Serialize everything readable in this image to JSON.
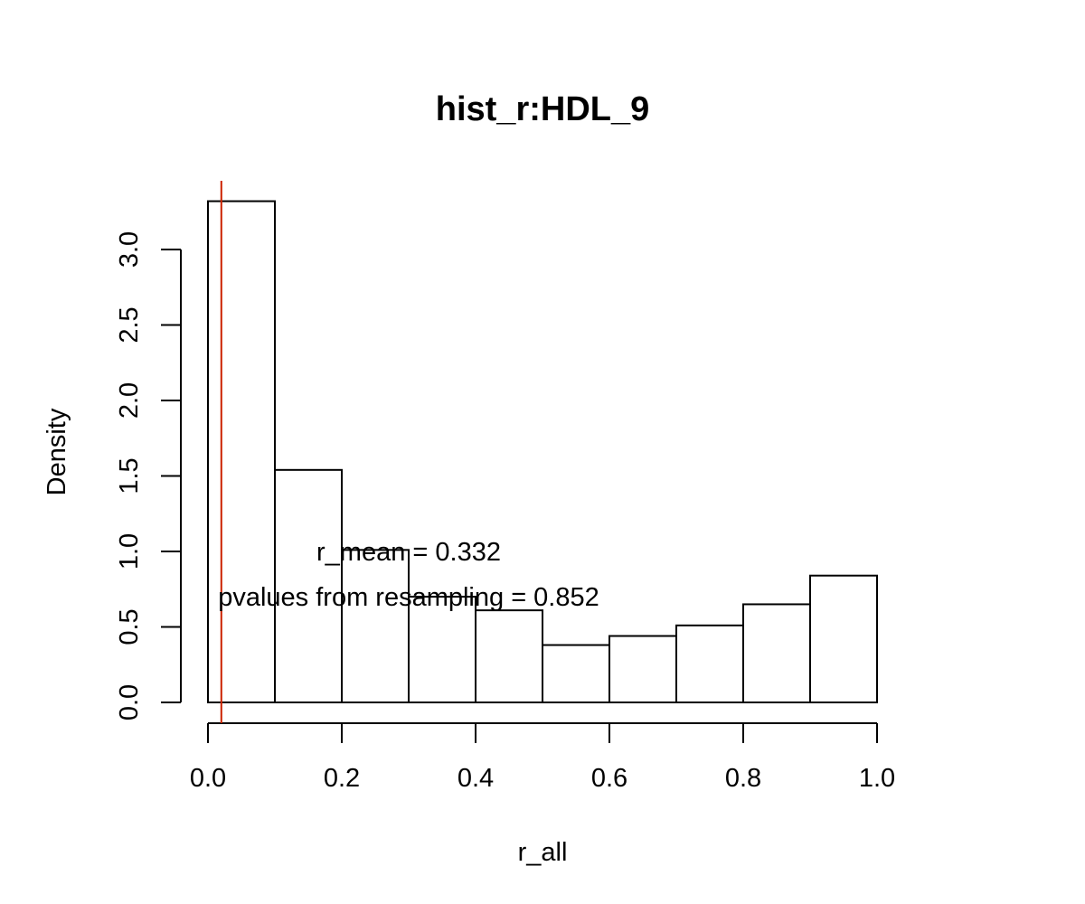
{
  "chart_data": {
    "type": "bar",
    "title": "hist_r:HDL_9",
    "xlabel": "r_all",
    "ylabel": "Density",
    "xlim": [
      0.0,
      1.0
    ],
    "ylim": [
      0.0,
      3.35
    ],
    "x_ticks": [
      "0.0",
      "0.2",
      "0.4",
      "0.6",
      "0.8",
      "1.0"
    ],
    "x_tick_values": [
      0.0,
      0.2,
      0.4,
      0.6,
      0.8,
      1.0
    ],
    "y_ticks": [
      "0.0",
      "0.5",
      "1.0",
      "1.5",
      "2.0",
      "2.5",
      "3.0"
    ],
    "y_tick_values": [
      0.0,
      0.5,
      1.0,
      1.5,
      2.0,
      2.5,
      3.0
    ],
    "bins": [
      {
        "x0": 0.0,
        "x1": 0.1,
        "density": 3.32
      },
      {
        "x0": 0.1,
        "x1": 0.2,
        "density": 1.54
      },
      {
        "x0": 0.2,
        "x1": 0.3,
        "density": 1.01
      },
      {
        "x0": 0.3,
        "x1": 0.4,
        "density": 0.7
      },
      {
        "x0": 0.4,
        "x1": 0.5,
        "density": 0.61
      },
      {
        "x0": 0.5,
        "x1": 0.6,
        "density": 0.38
      },
      {
        "x0": 0.6,
        "x1": 0.7,
        "density": 0.44
      },
      {
        "x0": 0.7,
        "x1": 0.8,
        "density": 0.51
      },
      {
        "x0": 0.8,
        "x1": 0.9,
        "density": 0.65
      },
      {
        "x0": 0.9,
        "x1": 1.0,
        "density": 0.84
      }
    ],
    "reference_line": {
      "x": 0.02,
      "color": "#cc2200"
    },
    "annotations": [
      {
        "text": "r_mean = 0.332",
        "x": 0.3,
        "y": 1.0
      },
      {
        "text": "pvalues from resampling = 0.852",
        "x": 0.3,
        "y": 0.7
      }
    ],
    "grid": false,
    "bar_fill": "#ffffff",
    "bar_stroke": "#000000"
  }
}
